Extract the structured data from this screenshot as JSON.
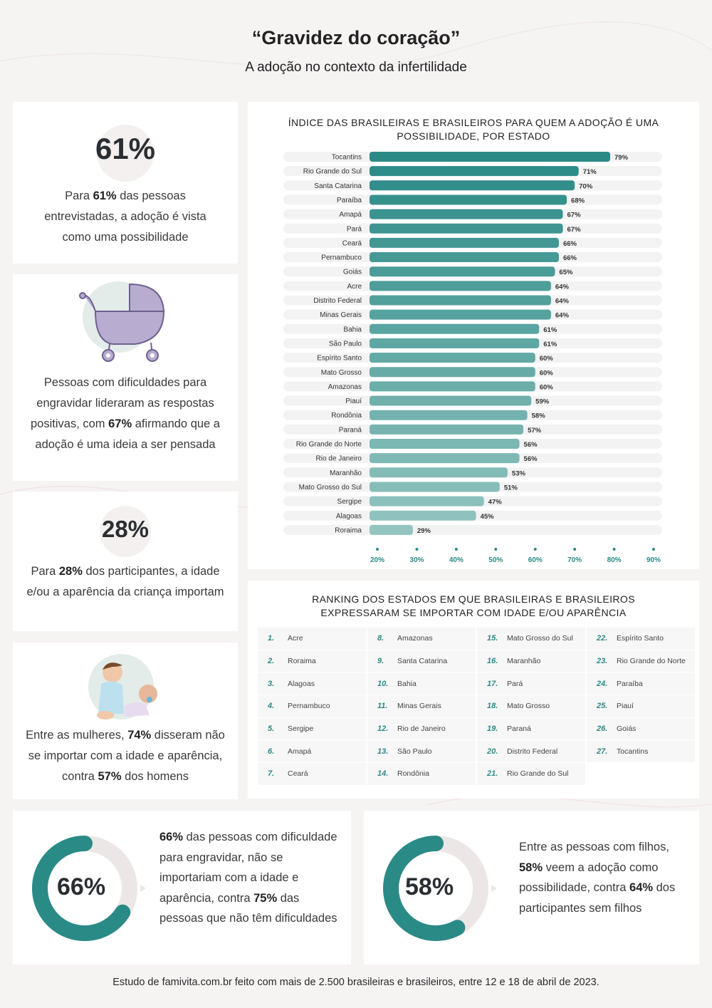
{
  "title": "“Gravidez do coração”",
  "subtitle": "A adoção no contexto da infertilidade",
  "cards": {
    "possibility": {
      "pct": "61%",
      "text_a": "Para ",
      "text_b": "61%",
      "text_c": " das pessoas entrevistadas, a adoção é vista como uma possibilidade"
    },
    "difficulty": {
      "text_a": "Pessoas com dificuldades para engravidar lideraram as respostas positivas, com ",
      "text_b": "67%",
      "text_c": " afirmando que a adoção é uma ideia a ser pensada"
    },
    "age": {
      "pct": "28%",
      "text_a": "Para ",
      "text_b": "28%",
      "text_c": " dos participantes, a idade e/ou a aparência da criança importam"
    },
    "women": {
      "text_a": "Entre as mulheres, ",
      "text_b": "74%",
      "text_c": " disseram não se importar com a idade e aparência, contra ",
      "text_d": "57%",
      "text_e": " dos homens"
    }
  },
  "chart_data": {
    "type": "bar",
    "orientation": "horizontal",
    "title": "ÍNDICE DAS BRASILEIRAS E BRASILEIROS PARA QUEM A ADOÇÃO É UMA POSSIBILIDADE, POR ESTADO",
    "categories": [
      "Tocantins",
      "Rio Grande do Sul",
      "Santa Catarina",
      "Paraíba",
      "Amapá",
      "Pará",
      "Ceará",
      "Pernambuco",
      "Goiás",
      "Acre",
      "Distrito Federal",
      "Minas Gerais",
      "Bahia",
      "São Paulo",
      "Espírito Santo",
      "Mato Grosso",
      "Amazonas",
      "Piauí",
      "Rondônia",
      "Paraná",
      "Rio Grande do Norte",
      "Rio de Janeiro",
      "Maranhão",
      "Mato Grosso do Sul",
      "Sergipe",
      "Alagoas",
      "Roraima"
    ],
    "values": [
      79,
      71,
      70,
      68,
      67,
      67,
      66,
      66,
      65,
      64,
      64,
      64,
      61,
      61,
      60,
      60,
      60,
      59,
      58,
      57,
      56,
      56,
      53,
      51,
      47,
      45,
      29
    ],
    "value_labels": [
      "79%",
      "71%",
      "70%",
      "68%",
      "67%",
      "67%",
      "66%",
      "66%",
      "65%",
      "64%",
      "64%",
      "64%",
      "61%",
      "61%",
      "60%",
      "60%",
      "60%",
      "59%",
      "58%",
      "57%",
      "56%",
      "56%",
      "53%",
      "51%",
      "47%",
      "45%",
      "29%"
    ],
    "xticks": [
      "20%",
      "30%",
      "40%",
      "50%",
      "60%",
      "70%",
      "80%",
      "90%"
    ],
    "xlim": [
      20,
      90
    ],
    "bar_color_top": "#2a8a86",
    "bar_color_bottom": "#93c4c0",
    "track_color": "#f3f3f3"
  },
  "ranking": {
    "title": "RANKING DOS ESTADOS EM QUE BRASILEIRAS E BRASILEIROS EXPRESSARAM SE IMPORTAR COM IDADE E/OU APARÊNCIA",
    "columns": [
      [
        {
          "n": "1.",
          "s": "Acre"
        },
        {
          "n": "2.",
          "s": "Roraima"
        },
        {
          "n": "3.",
          "s": "Alagoas"
        },
        {
          "n": "4.",
          "s": "Pernambuco"
        },
        {
          "n": "5.",
          "s": "Sergipe"
        },
        {
          "n": "6.",
          "s": "Amapá"
        },
        {
          "n": "7.",
          "s": "Ceará"
        }
      ],
      [
        {
          "n": "8.",
          "s": "Amazonas"
        },
        {
          "n": "9.",
          "s": "Santa Catarina"
        },
        {
          "n": "10.",
          "s": "Bahia"
        },
        {
          "n": "11.",
          "s": "Minas Gerais"
        },
        {
          "n": "12.",
          "s": "Rio de Janeiro"
        },
        {
          "n": "13.",
          "s": "São Paulo"
        },
        {
          "n": "14.",
          "s": "Rondônia"
        }
      ],
      [
        {
          "n": "15.",
          "s": "Mato Grosso do Sul"
        },
        {
          "n": "16.",
          "s": "Maranhão"
        },
        {
          "n": "17.",
          "s": "Pará"
        },
        {
          "n": "18.",
          "s": "Mato Grosso"
        },
        {
          "n": "19.",
          "s": "Paraná"
        },
        {
          "n": "20.",
          "s": "Distrito Federal"
        },
        {
          "n": "21.",
          "s": "Rio Grande do Sul"
        }
      ],
      [
        {
          "n": "22.",
          "s": "Espírito Santo"
        },
        {
          "n": "23.",
          "s": "Rio Grande do Norte"
        },
        {
          "n": "24.",
          "s": "Paraíba"
        },
        {
          "n": "25.",
          "s": "Piauí"
        },
        {
          "n": "26.",
          "s": "Goiás"
        },
        {
          "n": "27.",
          "s": "Tocantins"
        }
      ]
    ]
  },
  "donuts": {
    "left": {
      "pct": "66%",
      "value": 66,
      "text_a": "66%",
      "text_b": " das pessoas com dificuldade para engravidar, não se importariam com a idade e aparência, contra ",
      "text_c": "75%",
      "text_d": " das pessoas que não têm dificuldades"
    },
    "right": {
      "pct": "58%",
      "value": 58,
      "text_a": "Entre as pessoas com filhos, ",
      "text_b": "58%",
      "text_c": " veem a adoção como possibilidade, contra ",
      "text_d": "64%",
      "text_e": " dos participantes sem filhos"
    },
    "color": "#2a8a86",
    "track": "#ece7e6"
  },
  "footer": "Estudo de famivita.com.br feito com mais de 2.500 brasileiras e brasileiros, entre 12 e 18 de abril de 2023."
}
